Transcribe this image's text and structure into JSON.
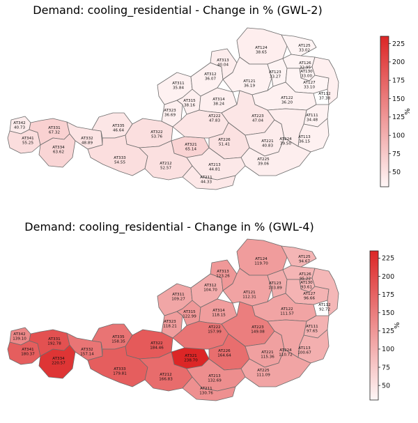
{
  "maps": [
    {
      "title": "Demand: cooling_residential - Change in % (GWL-2)",
      "colorbar": {
        "unit": "%",
        "min": 30,
        "max": 235,
        "ticks": [
          50,
          75,
          100,
          125,
          150,
          175,
          200,
          225
        ]
      },
      "regions": [
        {
          "code": "AT342",
          "value": "40.73"
        },
        {
          "code": "AT341",
          "value": "55.25"
        },
        {
          "code": "AT331",
          "value": "67.32"
        },
        {
          "code": "AT334",
          "value": "63.62"
        },
        {
          "code": "AT332",
          "value": "48.89"
        },
        {
          "code": "AT335",
          "value": "46.64"
        },
        {
          "code": "AT322",
          "value": "53.76"
        },
        {
          "code": "AT321",
          "value": "65.14"
        },
        {
          "code": "AT323",
          "value": "36.69"
        },
        {
          "code": "AT311",
          "value": "35.84"
        },
        {
          "code": "AT315",
          "value": "38.16"
        },
        {
          "code": "AT312",
          "value": "36.07"
        },
        {
          "code": "AT313",
          "value": "40.04"
        },
        {
          "code": "AT314",
          "value": "38.24"
        },
        {
          "code": "AT124",
          "value": "38.65"
        },
        {
          "code": "AT125",
          "value": "33.02"
        },
        {
          "code": "AT121",
          "value": "36.19"
        },
        {
          "code": "AT123",
          "value": "33.27"
        },
        {
          "code": "AT126",
          "value": "32.95"
        },
        {
          "code": "AT130",
          "value": "33.00"
        },
        {
          "code": "AT127",
          "value": "33.10"
        },
        {
          "code": "AT112",
          "value": "37.38"
        },
        {
          "code": "AT122",
          "value": "36.20"
        },
        {
          "code": "AT111",
          "value": "34.48"
        },
        {
          "code": "AT113",
          "value": "36.15"
        },
        {
          "code": "AT222",
          "value": "47.83"
        },
        {
          "code": "AT223",
          "value": "47.04"
        },
        {
          "code": "AT226",
          "value": "51.41"
        },
        {
          "code": "AT221",
          "value": "40.83"
        },
        {
          "code": "AT224",
          "value": "39.50"
        },
        {
          "code": "AT225",
          "value": "39.06"
        },
        {
          "code": "AT333",
          "value": "54.55"
        },
        {
          "code": "AT212",
          "value": "52.57"
        },
        {
          "code": "AT213",
          "value": "44.81"
        },
        {
          "code": "AT211",
          "value": "44.33"
        }
      ]
    },
    {
      "title": "Demand: cooling_residential - Change in % (GWL-4)",
      "colorbar": {
        "unit": "%",
        "min": 30,
        "max": 235,
        "ticks": [
          50,
          75,
          100,
          125,
          150,
          175,
          200,
          225
        ]
      },
      "regions": [
        {
          "code": "AT342",
          "value": "139.10"
        },
        {
          "code": "AT341",
          "value": "180.37"
        },
        {
          "code": "AT331",
          "value": "192.78"
        },
        {
          "code": "AT334",
          "value": "220.57"
        },
        {
          "code": "AT332",
          "value": "157.14"
        },
        {
          "code": "AT335",
          "value": "158.35"
        },
        {
          "code": "AT322",
          "value": "184.46"
        },
        {
          "code": "AT321",
          "value": "238.70"
        },
        {
          "code": "AT323",
          "value": "118.21"
        },
        {
          "code": "AT311",
          "value": "109.27"
        },
        {
          "code": "AT315",
          "value": "122.99"
        },
        {
          "code": "AT312",
          "value": "104.70"
        },
        {
          "code": "AT313",
          "value": "123.26"
        },
        {
          "code": "AT314",
          "value": "118.15"
        },
        {
          "code": "AT124",
          "value": "119.70"
        },
        {
          "code": "AT125",
          "value": "94.67"
        },
        {
          "code": "AT121",
          "value": "112.31"
        },
        {
          "code": "AT123",
          "value": "103.89"
        },
        {
          "code": "AT126",
          "value": "95.22"
        },
        {
          "code": "AT130",
          "value": "93.61"
        },
        {
          "code": "AT127",
          "value": "96.66"
        },
        {
          "code": "AT112",
          "value": "92.72"
        },
        {
          "code": "AT122",
          "value": "111.57"
        },
        {
          "code": "AT111",
          "value": "97.65"
        },
        {
          "code": "AT113",
          "value": "100.67"
        },
        {
          "code": "AT222",
          "value": "157.99"
        },
        {
          "code": "AT223",
          "value": "149.08"
        },
        {
          "code": "AT226",
          "value": "164.64"
        },
        {
          "code": "AT221",
          "value": "115.36"
        },
        {
          "code": "AT224",
          "value": "110.72"
        },
        {
          "code": "AT225",
          "value": "111.09"
        },
        {
          "code": "AT333",
          "value": "179.81"
        },
        {
          "code": "AT212",
          "value": "166.83"
        },
        {
          "code": "AT213",
          "value": "132.69"
        },
        {
          "code": "AT211",
          "value": "130.76"
        }
      ]
    }
  ]
}
